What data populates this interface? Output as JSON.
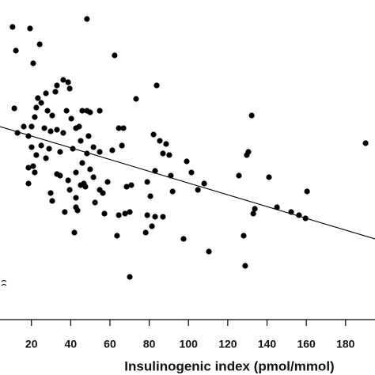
{
  "chart_data": {
    "type": "scatter",
    "x_label": "Insulinogenic index (pmol/mmol)",
    "xlim": [
      4,
      195
    ],
    "ylim": [
      0,
      404
    ],
    "xticks": [
      20,
      40,
      60,
      80,
      100,
      120,
      140,
      160,
      180
    ],
    "color": "#000000",
    "x": [
      10.4,
      19.3,
      48.3,
      12.1,
      24.2,
      20.9,
      62.4,
      36.2,
      38.7,
      39.5,
      33.0,
      32.2,
      27.4,
      23.3,
      25.0,
      22.5,
      11.3,
      28.2,
      30.6,
      37.9,
      45.9,
      48.3,
      49.9,
      54.8,
      73.3,
      83.8,
      40.3,
      44.3,
      21.7,
      20.1,
      16.1,
      12.9,
      18.5,
      26.6,
      29.8,
      33.0,
      36.2,
      42.7,
      45.1,
      49.1,
      51.6,
      64.5,
      66.9,
      66.1,
      82.2,
      85.4,
      88.6,
      87.0,
      90.2,
      20.1,
      25.0,
      29.0,
      22.5,
      34.6,
      41.1,
      48.3,
      54.8,
      61.2,
      20.9,
      18.5,
      21.7,
      27.4,
      33.0,
      34.6,
      42.7,
      45.9,
      49.9,
      51.6,
      38.7,
      39.5,
      45.1,
      47.5,
      18.5,
      29.8,
      42.7,
      46.7,
      54.8,
      56.4,
      58.8,
      68.5,
      70.9,
      79.0,
      80.6,
      83.0,
      91.0,
      91.9,
      99.1,
      101.5,
      104.8,
      108.0,
      130.5,
      129.7,
      125.7,
      132.2,
      141.0,
      160.4,
      145.1,
      133.8,
      133.0,
      152.3,
      156.3,
      159.6,
      190.2,
      30.6,
      42.7,
      43.5,
      37.0,
      52.4,
      64.5,
      67.7,
      70.1,
      57.2,
      79.0,
      83.0,
      87.0,
      81.4,
      78.2,
      63.6,
      41.9,
      97.5,
      110.4,
      128.1,
      128.9,
      70.1
    ],
    "values": [
      370,
      368,
      380,
      340,
      348,
      324,
      334,
      303,
      300,
      292,
      296,
      288,
      286,
      280,
      274,
      268,
      267,
      264,
      258,
      264,
      264,
      264,
      262,
      264,
      279,
      296,
      254,
      244,
      256,
      244,
      244,
      236,
      232,
      242,
      238,
      240,
      236,
      242,
      226,
      232,
      218,
      242,
      242,
      220,
      234,
      226,
      222,
      210,
      208,
      218,
      220,
      216,
      208,
      212,
      216,
      210,
      212,
      214,
      194,
      192,
      186,
      204,
      184,
      182,
      186,
      198,
      190,
      180,
      176,
      164,
      170,
      168,
      172,
      160,
      154,
      172,
      164,
      160,
      174,
      168,
      170,
      174,
      156,
      188,
      182,
      162,
      200,
      186,
      164,
      172,
      212,
      208,
      182,
      258,
      180,
      162,
      142,
      140,
      134,
      136,
      132,
      128,
      223,
      150,
      142,
      138,
      136,
      148,
      132,
      134,
      136,
      134,
      132,
      130,
      130,
      118,
      110,
      106,
      110,
      102,
      86,
      106,
      68,
      54
    ],
    "trend_line": {
      "x": [
        4,
        195
      ],
      "values": [
        244,
        102
      ]
    }
  }
}
